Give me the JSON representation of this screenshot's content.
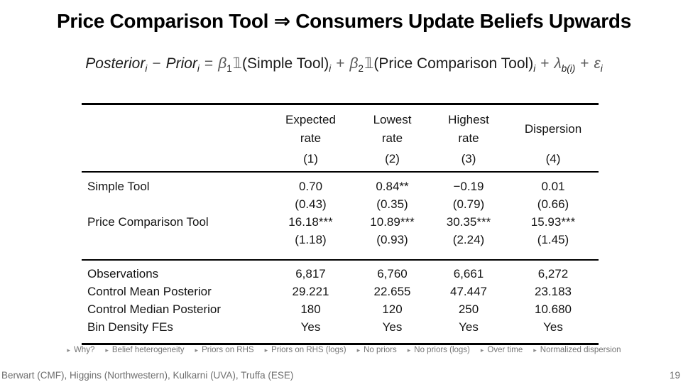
{
  "slide": {
    "title": "Price Comparison Tool ⇒ Consumers Update Beliefs Upwards"
  },
  "equation": {
    "lhs_term1": "Posterior",
    "lhs_term1_sub": "i",
    "minus": "−",
    "lhs_term2": "Prior",
    "lhs_term2_sub": "i",
    "equals": "=",
    "beta": "β",
    "beta1_index": "1",
    "beta2_index": "2",
    "indicator": "𝟙",
    "regressor1": "(Simple Tool)",
    "regressor2": "(Price Comparison Tool)",
    "obs_sub": "i",
    "plus": "+",
    "lambda": "λ",
    "lambda_sub": "b(i)",
    "epsilon": "ε",
    "epsilon_sub": "i"
  },
  "table": {
    "col_headers": [
      {
        "line1": "Expected",
        "line2": "rate",
        "num": "(1)"
      },
      {
        "line1": "Lowest",
        "line2": "rate",
        "num": "(2)"
      },
      {
        "line1": "Highest",
        "line2": "rate",
        "num": "(3)"
      },
      {
        "line1": "Dispersion",
        "line2": "",
        "num": "(4)"
      }
    ],
    "coef_rows": [
      {
        "label": "Simple Tool",
        "values": [
          "0.70",
          "0.84**",
          "−0.19",
          "0.01"
        ],
        "se": [
          "(0.43)",
          "(0.35)",
          "(0.79)",
          "(0.66)"
        ]
      },
      {
        "label": "Price Comparison Tool",
        "values": [
          "16.18***",
          "10.89***",
          "30.35***",
          "15.93***"
        ],
        "se": [
          "(1.18)",
          "(0.93)",
          "(2.24)",
          "(1.45)"
        ]
      }
    ],
    "stat_rows": [
      {
        "label": "Observations",
        "values": [
          "6,817",
          "6,760",
          "6,661",
          "6,272"
        ]
      },
      {
        "label": "Control Mean Posterior",
        "values": [
          "29.221",
          "22.655",
          "47.447",
          "23.183"
        ]
      },
      {
        "label": "Control Median Posterior",
        "values": [
          "180",
          "120",
          "250",
          "10.680"
        ]
      },
      {
        "label": "Bin Density FEs",
        "values": [
          "Yes",
          "Yes",
          "Yes",
          "Yes"
        ]
      }
    ]
  },
  "nav": {
    "arrow_icon": "▸",
    "links": [
      {
        "label": "Why?"
      },
      {
        "label": "Belief heterogeneity"
      },
      {
        "label": "Priors on RHS"
      },
      {
        "label": "Priors on RHS (logs)"
      },
      {
        "label": "No priors"
      },
      {
        "label": "No priors (logs)"
      },
      {
        "label": "Over time"
      },
      {
        "label": "Normalized dispersion"
      }
    ]
  },
  "footer": {
    "authors": "Berwart (CMF), Higgins (Northwestern), Kulkarni (UVA), Truffa (ESE)",
    "page_number": "19"
  }
}
